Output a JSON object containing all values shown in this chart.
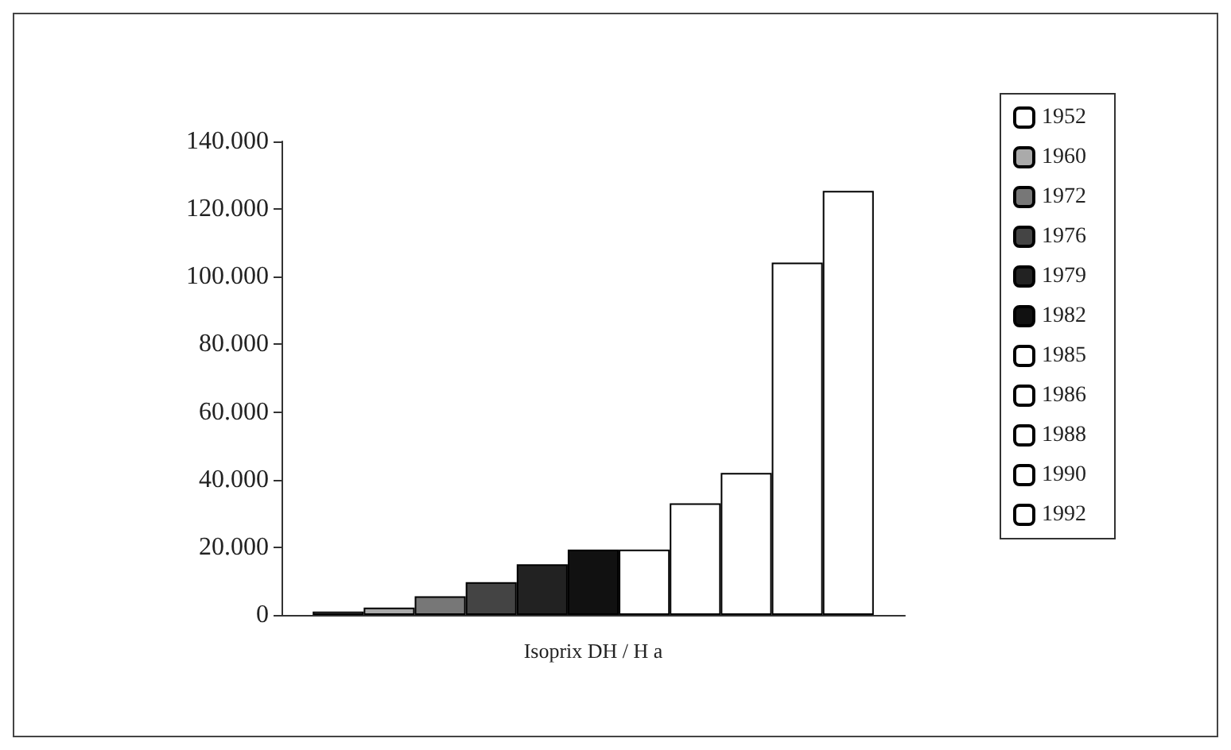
{
  "chart_data": {
    "type": "bar",
    "categories": [
      "Isoprix DH / H a"
    ],
    "series": [
      {
        "name": "1952",
        "color": "#ffffff",
        "values": [
          1000
        ]
      },
      {
        "name": "1960",
        "color": "#aaaaaa",
        "values": [
          2200
        ]
      },
      {
        "name": "1972",
        "color": "#777777",
        "values": [
          5500
        ]
      },
      {
        "name": "1976",
        "color": "#444444",
        "values": [
          9700
        ]
      },
      {
        "name": "1979",
        "color": "#222222",
        "values": [
          15000
        ]
      },
      {
        "name": "1982",
        "color": "#111111",
        "values": [
          19300
        ]
      },
      {
        "name": "1985",
        "color": "#ffffff",
        "values": [
          19300
        ]
      },
      {
        "name": "1986",
        "color": "#ffffff",
        "values": [
          33000
        ]
      },
      {
        "name": "1988",
        "color": "#ffffff",
        "values": [
          42000
        ]
      },
      {
        "name": "1990",
        "color": "#ffffff",
        "values": [
          104200
        ]
      },
      {
        "name": "1992",
        "color": "#ffffff",
        "values": [
          125400
        ]
      }
    ],
    "ylim": [
      0,
      140000
    ],
    "yticks": [
      0,
      {
        "value": 20000,
        "label": "20.000"
      },
      {
        "value": 40000,
        "label": "40.000"
      },
      {
        "value": 60000,
        "label": "60.000"
      },
      {
        "value": 80000,
        "label": "80.000"
      },
      {
        "value": 100000,
        "label": "100.000"
      },
      {
        "value": 120000,
        "label": "120.000"
      },
      {
        "value": 140000,
        "label": "140.000"
      }
    ],
    "grid": false,
    "legend": "right"
  }
}
